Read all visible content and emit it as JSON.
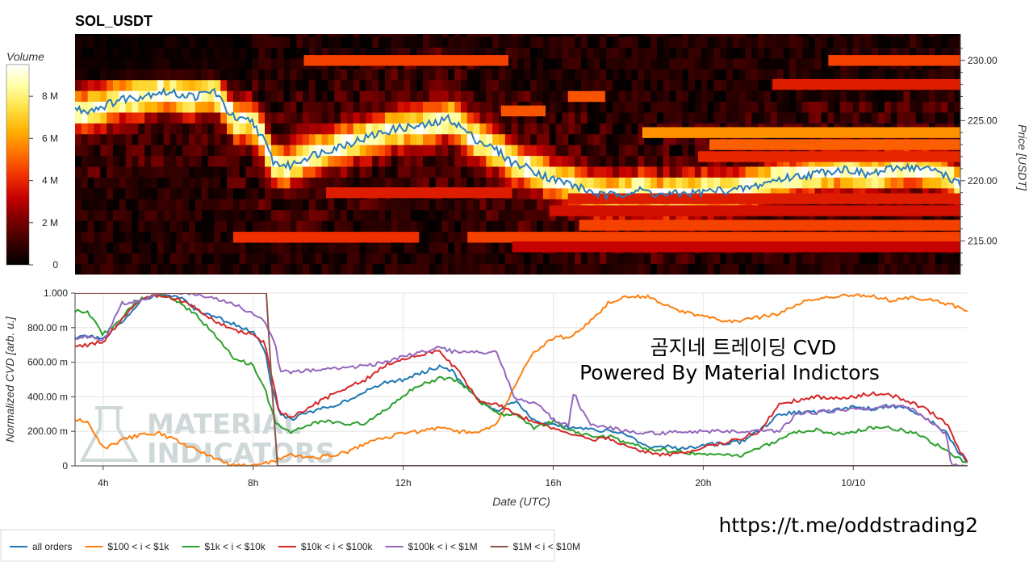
{
  "chart_data": [
    {
      "type": "heatmap",
      "title": "SOL_USDT",
      "ylabel": "Price [USDT]",
      "ylim": [
        212.2,
        232.2
      ],
      "price_ticks": [
        "230.00",
        "225.00",
        "220.00",
        "215.00"
      ],
      "price_tick_values": [
        230,
        225,
        220,
        215
      ],
      "colorbar": {
        "label": "Volume",
        "range": [
          0,
          9500000
        ],
        "ticks": [
          "8 M",
          "6 M",
          "4 M",
          "2 M",
          "0"
        ],
        "tick_values": [
          8000000,
          6000000,
          4000000,
          2000000,
          0
        ],
        "colors": [
          "#000000",
          "#3a0000",
          "#7a0000",
          "#c40000",
          "#f03000",
          "#ff7000",
          "#ffb000",
          "#ffe040",
          "#ffffa0",
          "#ffffff"
        ]
      },
      "time_range_hours": [
        3.25,
        27.05
      ],
      "price_line": {
        "name": "price",
        "color": "#2b7bb9",
        "t": [
          3.25,
          3.5,
          4.0,
          4.5,
          5.0,
          5.5,
          6.0,
          6.5,
          7.0,
          7.3,
          7.6,
          8.0,
          8.3,
          8.6,
          9.0,
          9.5,
          10.0,
          10.5,
          11.0,
          11.5,
          12.0,
          12.5,
          13.0,
          13.3,
          13.6,
          14.0,
          14.3,
          14.6,
          15.0,
          15.5,
          16.0,
          16.5,
          17.0,
          17.5,
          18.0,
          18.5,
          19.0,
          19.5,
          20.0,
          20.5,
          21.0,
          21.5,
          22.0,
          22.5,
          23.0,
          23.5,
          24.0,
          24.5,
          25.0,
          25.5,
          26.0,
          26.5,
          27.05
        ],
        "price": [
          226.0,
          225.8,
          226.2,
          226.8,
          227.0,
          227.4,
          227.2,
          227.0,
          227.5,
          226.0,
          225.0,
          225.0,
          223.5,
          221.5,
          221.2,
          222.0,
          222.5,
          223.0,
          223.5,
          224.0,
          224.4,
          224.5,
          224.8,
          225.2,
          224.5,
          223.5,
          223.0,
          222.5,
          221.5,
          221.0,
          220.2,
          219.8,
          219.2,
          218.7,
          219.0,
          219.2,
          218.8,
          218.9,
          219.0,
          219.2,
          219.2,
          219.5,
          220.0,
          220.3,
          220.5,
          220.8,
          221.0,
          220.5,
          220.8,
          221.2,
          221.0,
          220.8,
          219.6
        ]
      },
      "heat_bands": [
        {
          "price": 230.0,
          "t0": 9.4,
          "t1": 14.9,
          "volume": 4500000
        },
        {
          "price": 230.0,
          "t0": 23.5,
          "t1": 27.05,
          "volume": 4500000
        },
        {
          "price": 228.0,
          "t0": 22.0,
          "t1": 27.05,
          "volume": 3800000
        },
        {
          "price": 227.0,
          "t0": 16.5,
          "t1": 17.5,
          "volume": 4800000
        },
        {
          "price": 225.8,
          "t0": 14.7,
          "t1": 15.9,
          "volume": 4800000
        },
        {
          "price": 224.0,
          "t0": 18.5,
          "t1": 27.05,
          "volume": 5800000
        },
        {
          "price": 223.0,
          "t0": 20.3,
          "t1": 27.05,
          "volume": 5000000
        },
        {
          "price": 222.0,
          "t0": 20.0,
          "t1": 27.05,
          "volume": 4000000
        },
        {
          "price": 219.0,
          "t0": 10.0,
          "t1": 15.0,
          "volume": 3800000
        },
        {
          "price": 218.5,
          "t0": 16.5,
          "t1": 27.05,
          "volume": 3800000
        },
        {
          "price": 217.5,
          "t0": 16.0,
          "t1": 27.05,
          "volume": 3500000
        },
        {
          "price": 216.3,
          "t0": 16.8,
          "t1": 27.05,
          "volume": 4500000
        },
        {
          "price": 215.3,
          "t0": 7.5,
          "t1": 12.5,
          "volume": 4200000
        },
        {
          "price": 215.3,
          "t0": 13.8,
          "t1": 27.05,
          "volume": 4500000
        },
        {
          "price": 214.5,
          "t0": 15.0,
          "t1": 27.05,
          "volume": 3200000
        }
      ]
    },
    {
      "type": "line",
      "xlabel": "Date (UTC)",
      "ylabel": "Normalized CVD [arb. u.]",
      "ylim": [
        0,
        1
      ],
      "xlim": [
        3.25,
        27.05
      ],
      "x_ticks": [
        "4h",
        "8h",
        "12h",
        "16h",
        "20h",
        "10/10"
      ],
      "x_tick_values": [
        4,
        8,
        12,
        16,
        20,
        24
      ],
      "y_ticks": [
        "1.000",
        "800.00 m",
        "600.00 m",
        "400.00 m",
        "200.00 m",
        "0"
      ],
      "y_tick_values": [
        1.0,
        0.8,
        0.6,
        0.4,
        0.2,
        0.0
      ],
      "grid": true,
      "legend_position": "bottom-left",
      "series": [
        {
          "name": "all orders",
          "color": "#1f77b4",
          "x": [
            3.25,
            3.6,
            4.0,
            4.5,
            5.0,
            5.5,
            6.0,
            6.5,
            7.0,
            7.5,
            8.0,
            8.3,
            8.5,
            8.7,
            9.0,
            9.5,
            10.0,
            10.5,
            11.0,
            11.5,
            12.0,
            12.5,
            13.0,
            13.3,
            13.6,
            14.0,
            14.5,
            15.0,
            15.5,
            16.0,
            16.5,
            17.0,
            17.5,
            18.0,
            18.5,
            19.0,
            19.5,
            20.0,
            20.5,
            21.0,
            21.5,
            22.0,
            22.5,
            23.0,
            23.5,
            24.0,
            24.5,
            25.0,
            25.5,
            26.0,
            26.5,
            26.8,
            27.05
          ],
          "y": [
            0.74,
            0.75,
            0.73,
            0.83,
            0.96,
            0.99,
            0.98,
            0.9,
            0.86,
            0.82,
            0.77,
            0.68,
            0.45,
            0.3,
            0.27,
            0.31,
            0.34,
            0.38,
            0.43,
            0.48,
            0.5,
            0.54,
            0.58,
            0.55,
            0.47,
            0.38,
            0.32,
            0.38,
            0.26,
            0.24,
            0.22,
            0.21,
            0.2,
            0.18,
            0.11,
            0.11,
            0.1,
            0.12,
            0.13,
            0.14,
            0.2,
            0.3,
            0.31,
            0.31,
            0.32,
            0.34,
            0.33,
            0.35,
            0.33,
            0.27,
            0.19,
            0.08,
            0.02
          ]
        },
        {
          "name": "$100 < i < $1k",
          "color": "#ff7f0e",
          "x": [
            3.25,
            3.6,
            4.0,
            4.5,
            5.0,
            5.5,
            6.0,
            6.5,
            7.0,
            7.5,
            8.0,
            8.5,
            9.0,
            9.5,
            10.0,
            10.5,
            11.0,
            11.5,
            12.0,
            12.5,
            13.0,
            13.5,
            14.0,
            14.5,
            15.0,
            15.5,
            16.0,
            16.5,
            17.0,
            17.5,
            18.0,
            18.5,
            19.0,
            19.5,
            20.0,
            20.5,
            21.0,
            21.5,
            22.0,
            22.5,
            23.0,
            23.5,
            24.0,
            24.5,
            25.0,
            25.5,
            26.0,
            26.5,
            27.05
          ],
          "y": [
            0.27,
            0.26,
            0.1,
            0.15,
            0.18,
            0.19,
            0.14,
            0.09,
            0.04,
            0.0,
            0.0,
            0.02,
            0.06,
            0.05,
            0.06,
            0.08,
            0.13,
            0.16,
            0.19,
            0.2,
            0.22,
            0.2,
            0.19,
            0.24,
            0.48,
            0.66,
            0.74,
            0.75,
            0.84,
            0.95,
            0.98,
            0.98,
            0.93,
            0.89,
            0.87,
            0.84,
            0.84,
            0.86,
            0.88,
            0.94,
            0.96,
            0.98,
            0.99,
            0.98,
            0.96,
            0.97,
            0.96,
            0.94,
            0.9
          ]
        },
        {
          "name": "$1k < i < $10k",
          "color": "#2ca02c",
          "x": [
            3.25,
            3.6,
            4.0,
            4.5,
            5.0,
            5.5,
            6.0,
            6.5,
            7.0,
            7.5,
            8.0,
            8.3,
            8.6,
            9.0,
            9.5,
            10.0,
            10.5,
            11.0,
            11.5,
            12.0,
            12.5,
            13.0,
            13.5,
            14.0,
            14.5,
            15.0,
            15.5,
            16.0,
            16.5,
            17.0,
            17.5,
            18.0,
            18.5,
            19.0,
            19.5,
            20.0,
            20.5,
            21.0,
            21.5,
            22.0,
            22.5,
            23.0,
            23.5,
            24.0,
            24.5,
            25.0,
            25.5,
            26.0,
            26.5,
            27.05
          ],
          "y": [
            0.9,
            0.89,
            0.76,
            0.86,
            0.97,
            0.99,
            0.95,
            0.87,
            0.75,
            0.62,
            0.58,
            0.45,
            0.25,
            0.2,
            0.24,
            0.26,
            0.24,
            0.25,
            0.32,
            0.41,
            0.47,
            0.51,
            0.49,
            0.38,
            0.3,
            0.3,
            0.22,
            0.26,
            0.2,
            0.17,
            0.17,
            0.13,
            0.1,
            0.09,
            0.08,
            0.06,
            0.06,
            0.06,
            0.1,
            0.15,
            0.2,
            0.21,
            0.18,
            0.2,
            0.22,
            0.22,
            0.2,
            0.15,
            0.09,
            0.01
          ]
        },
        {
          "name": "$10k < i < $100k",
          "color": "#d62728",
          "x": [
            3.25,
            3.6,
            4.0,
            4.5,
            5.0,
            5.5,
            6.0,
            6.5,
            7.0,
            7.5,
            8.0,
            8.3,
            8.5,
            8.7,
            9.0,
            9.5,
            10.0,
            10.5,
            11.0,
            11.5,
            12.0,
            12.5,
            13.0,
            13.5,
            14.0,
            14.5,
            15.0,
            15.5,
            16.0,
            16.5,
            17.0,
            17.5,
            18.0,
            18.5,
            19.0,
            19.5,
            20.0,
            20.5,
            21.0,
            21.5,
            22.0,
            22.5,
            23.0,
            23.5,
            24.0,
            24.5,
            25.0,
            25.5,
            26.0,
            26.5,
            26.8,
            27.05
          ],
          "y": [
            0.69,
            0.7,
            0.72,
            0.85,
            0.97,
            0.99,
            0.96,
            0.91,
            0.84,
            0.78,
            0.76,
            0.71,
            0.52,
            0.31,
            0.28,
            0.34,
            0.4,
            0.45,
            0.5,
            0.58,
            0.62,
            0.65,
            0.66,
            0.54,
            0.38,
            0.36,
            0.3,
            0.25,
            0.22,
            0.18,
            0.15,
            0.16,
            0.11,
            0.08,
            0.06,
            0.08,
            0.11,
            0.13,
            0.16,
            0.2,
            0.35,
            0.38,
            0.4,
            0.39,
            0.4,
            0.42,
            0.41,
            0.37,
            0.32,
            0.24,
            0.1,
            0.03
          ]
        },
        {
          "name": "$100k < i < $1M",
          "color": "#9467bd",
          "x": [
            3.25,
            3.6,
            4.0,
            4.5,
            5.0,
            5.5,
            6.0,
            6.5,
            7.0,
            7.5,
            8.0,
            8.3,
            8.6,
            8.7,
            9.0,
            9.5,
            10.0,
            10.5,
            11.0,
            11.5,
            12.0,
            12.5,
            13.0,
            13.3,
            13.5,
            14.0,
            14.5,
            15.0,
            15.5,
            16.0,
            16.4,
            16.55,
            16.7,
            17.0,
            17.5,
            18.0,
            18.5,
            19.0,
            19.5,
            20.0,
            20.5,
            21.0,
            21.5,
            22.0,
            22.5,
            23.0,
            23.5,
            24.0,
            24.5,
            25.0,
            25.5,
            26.0,
            26.5,
            26.6,
            27.05
          ],
          "y": [
            0.74,
            0.75,
            0.72,
            0.94,
            0.96,
            1.0,
            1.0,
            0.99,
            0.97,
            0.94,
            0.88,
            0.84,
            0.7,
            0.55,
            0.54,
            0.55,
            0.56,
            0.57,
            0.58,
            0.6,
            0.63,
            0.66,
            0.69,
            0.66,
            0.66,
            0.66,
            0.66,
            0.38,
            0.37,
            0.27,
            0.23,
            0.43,
            0.34,
            0.24,
            0.22,
            0.2,
            0.19,
            0.19,
            0.2,
            0.2,
            0.2,
            0.2,
            0.2,
            0.2,
            0.3,
            0.31,
            0.32,
            0.33,
            0.33,
            0.35,
            0.34,
            0.26,
            0.18,
            0.0,
            0.0
          ]
        },
        {
          "name": "$1M < i < $10M",
          "color": "#8c564b",
          "x": [
            3.25,
            8.35,
            8.5,
            8.65,
            27.05
          ],
          "y": [
            1.0,
            1.0,
            0.45,
            0.0,
            0.0
          ]
        }
      ]
    }
  ],
  "overlay": {
    "line1": "곰지네 트레이딩 CVD",
    "line2": "Powered By Material Indictors",
    "url": "https://t.me/oddstrading2"
  },
  "watermark": {
    "line1": "MATERIAL",
    "line2": "INDICATORS"
  }
}
